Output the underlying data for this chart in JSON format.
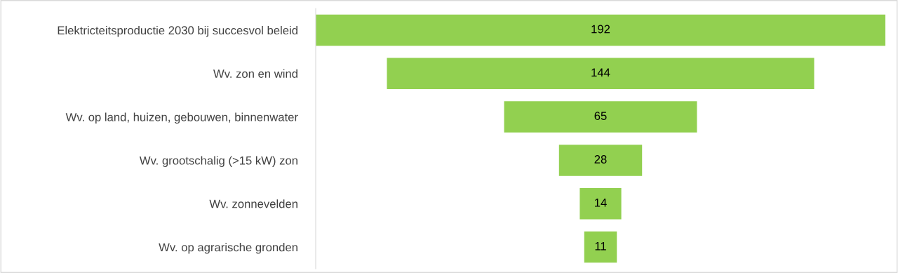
{
  "chart_data": {
    "type": "other",
    "categories": [
      "Elektricteitsproductie 2030 bij succesvol beleid",
      "Wv. zon en wind",
      "Wv. op land, huizen, gebouwen, binnenwater",
      "Wv. grootschalig (>15 kW) zon",
      "Wv. zonnevelden",
      "Wv. op agrarische gronden"
    ],
    "values": [
      192,
      144,
      65,
      28,
      14,
      11
    ],
    "color": "#92d050",
    "data_labels": true
  }
}
